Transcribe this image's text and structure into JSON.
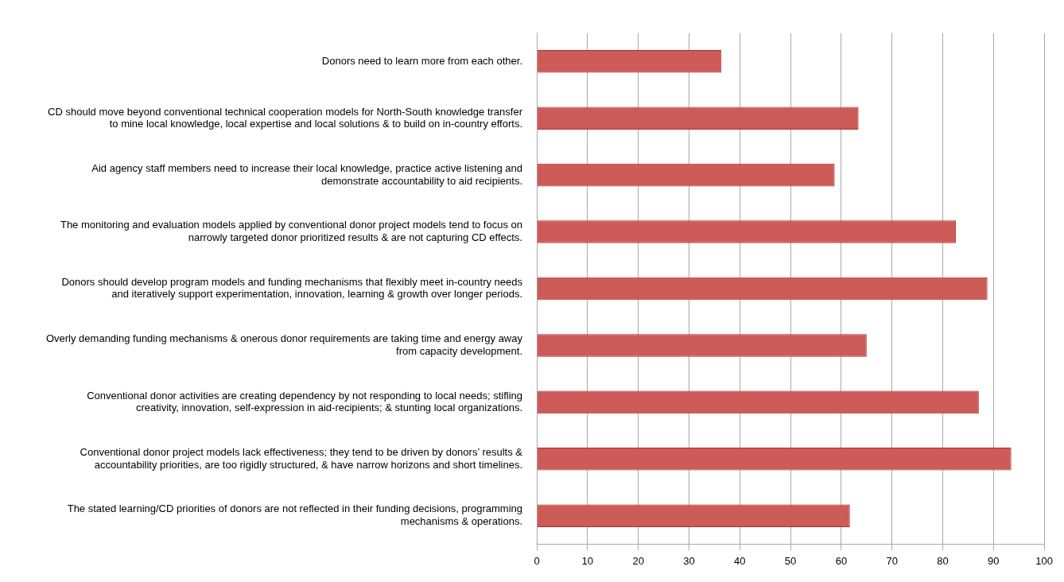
{
  "chart_data": {
    "type": "bar",
    "orientation": "horizontal",
    "categories": [
      "Donors need to learn more from each other.",
      "CD should move beyond conventional technical cooperation models for North-South knowledge transfer to mine local knowledge, local expertise and local solutions & to build on in-country efforts.",
      "Aid agency staff members need to increase their local knowledge, practice active listening and demonstrate accountability to aid recipients.",
      "The monitoring and evaluation models applied by conventional donor project models tend to focus on narrowly targeted donor prioritized results & are not capturing CD effects.",
      "Donors should develop program models and funding mechanisms that flexibly meet in-country needs and iteratively support experimentation, innovation, learning & growth over longer periods.",
      "Overly demanding funding mechanisms & onerous donor requirements are taking time and energy away from capacity development.",
      "Conventional donor activities are creating dependency by not responding to local needs; stifling creativity, innovation, self-expression in aid-recipients; & stunting local organizations.",
      "Conventional donor project models lack effectiveness; they tend to be driven by donors’ results & accountability priorities, are too rigidly structured, & have narrow horizons and short timelines.",
      "The stated learning/CD priorities of donors are not reflected in their funding decisions, programming mechanisms & operations."
    ],
    "values": [
      36.4,
      63.4,
      58.7,
      82.6,
      88.8,
      65.0,
      87.1,
      93.5,
      61.7
    ],
    "color": "#cd5b58",
    "xlim": [
      0,
      100
    ],
    "xticks": [
      0,
      10,
      20,
      30,
      40,
      50,
      60,
      70,
      80,
      90,
      100
    ],
    "grid": "x"
  }
}
